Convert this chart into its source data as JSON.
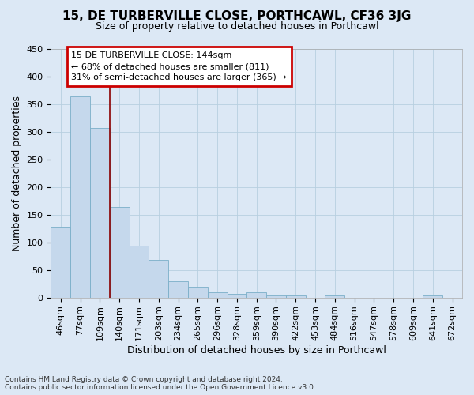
{
  "title": "15, DE TURBERVILLE CLOSE, PORTHCAWL, CF36 3JG",
  "subtitle": "Size of property relative to detached houses in Porthcawl",
  "xlabel": "Distribution of detached houses by size in Porthcawl",
  "ylabel": "Number of detached properties",
  "categories": [
    "46sqm",
    "77sqm",
    "109sqm",
    "140sqm",
    "171sqm",
    "203sqm",
    "234sqm",
    "265sqm",
    "296sqm",
    "328sqm",
    "359sqm",
    "390sqm",
    "422sqm",
    "453sqm",
    "484sqm",
    "516sqm",
    "547sqm",
    "578sqm",
    "609sqm",
    "641sqm",
    "672sqm"
  ],
  "values": [
    128,
    364,
    306,
    163,
    93,
    68,
    29,
    19,
    9,
    6,
    9,
    4,
    4,
    0,
    3,
    0,
    0,
    0,
    0,
    4,
    0
  ],
  "bar_color": "#c5d8ec",
  "bar_edge_color": "#7aafc8",
  "ylim": [
    0,
    450
  ],
  "yticks": [
    0,
    50,
    100,
    150,
    200,
    250,
    300,
    350,
    400,
    450
  ],
  "annotation_line1": "15 DE TURBERVILLE CLOSE: 144sqm",
  "annotation_line2": "← 68% of detached houses are smaller (811)",
  "annotation_line3": "31% of semi-detached houses are larger (365) →",
  "vline_x": 2.5,
  "background_color": "#dce8f5",
  "grid_color": "#b8cfe0",
  "footer": "Contains HM Land Registry data © Crown copyright and database right 2024.\nContains public sector information licensed under the Open Government Licence v3.0.",
  "title_fontsize": 11,
  "subtitle_fontsize": 9,
  "ylabel_fontsize": 9,
  "xlabel_fontsize": 9,
  "tick_fontsize": 8,
  "annotation_fontsize": 8
}
